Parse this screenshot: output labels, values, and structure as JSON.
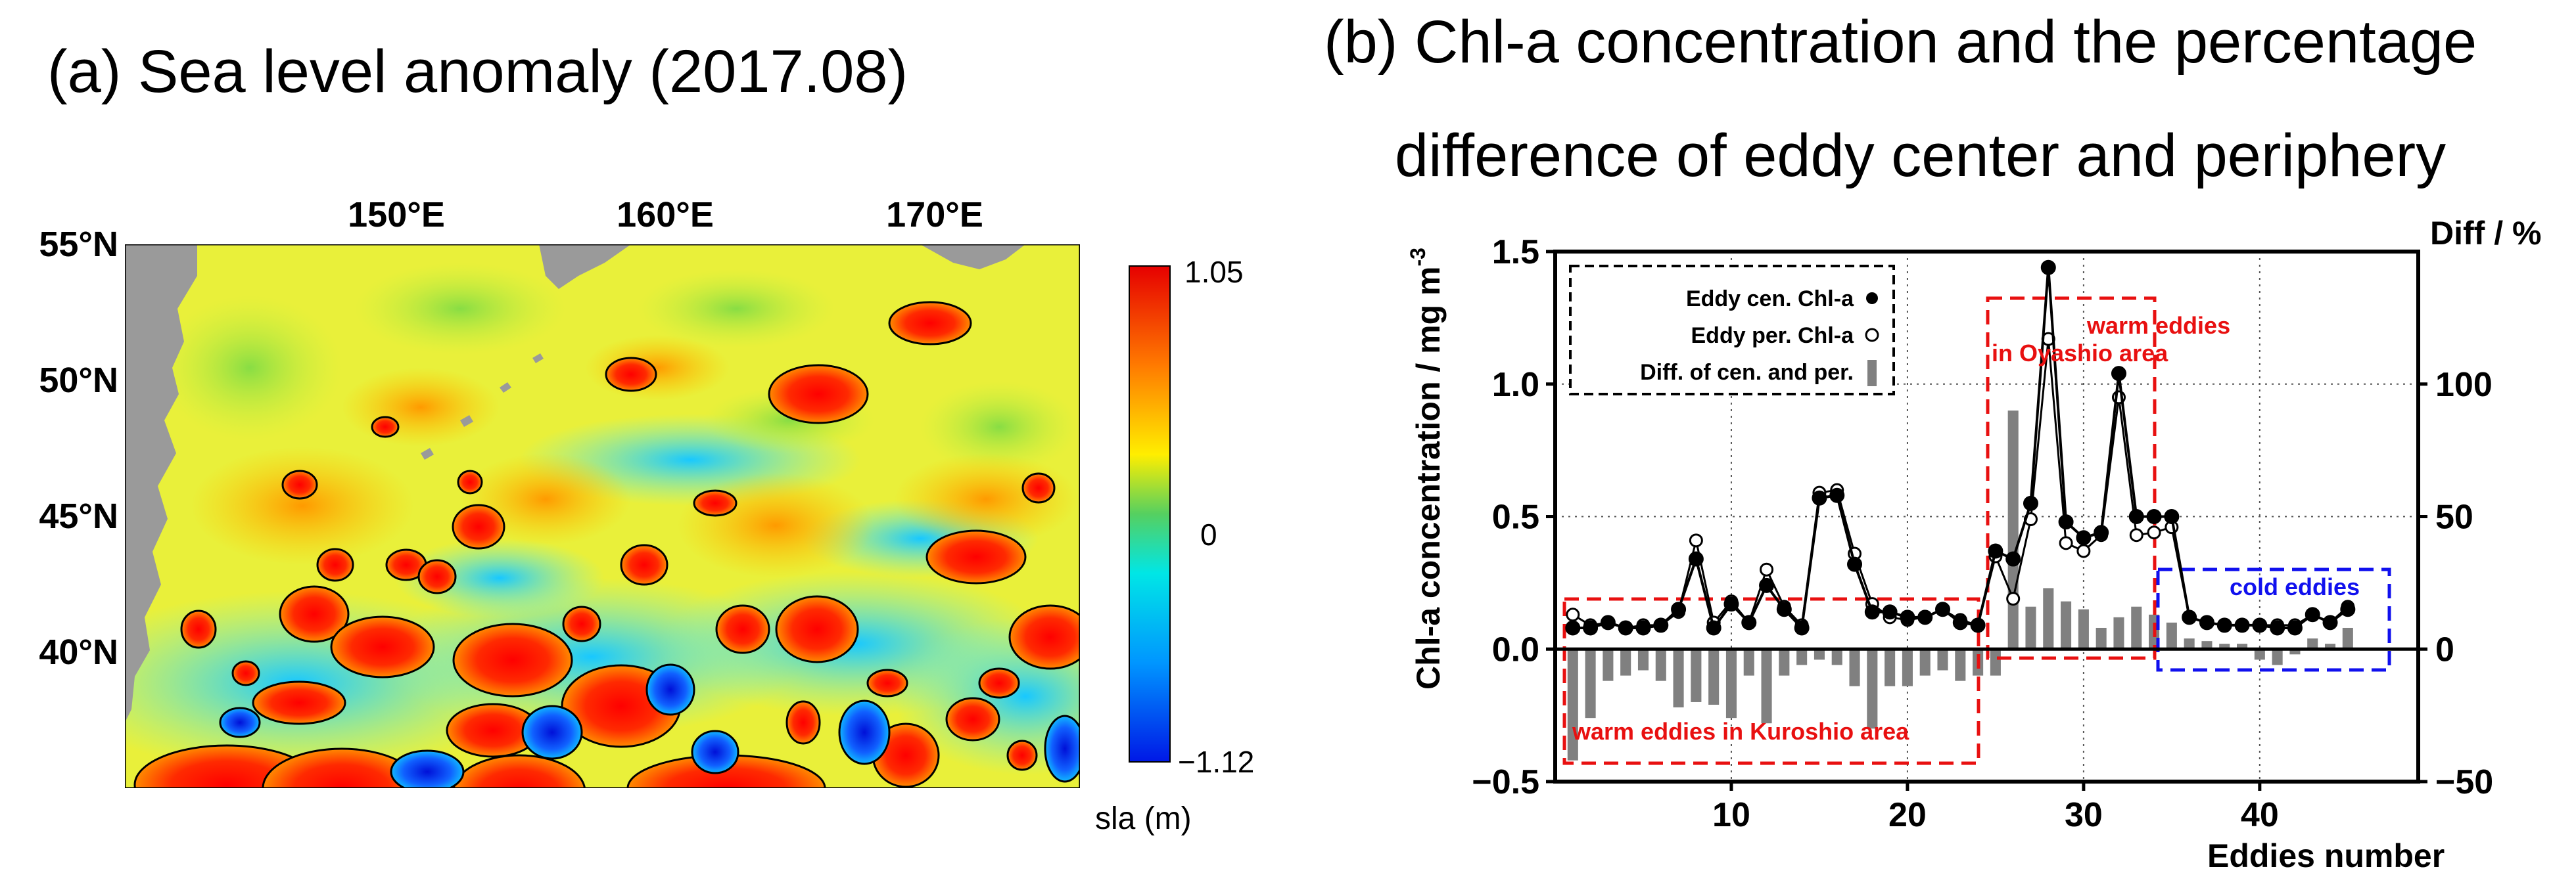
{
  "chart_data": [
    {
      "panel": "a",
      "type": "heatmap",
      "title": "(a) Sea level anomaly (2017.08)",
      "x_ticks": [
        "150°E",
        "160°E",
        "170°E"
      ],
      "y_ticks": [
        "55°N",
        "50°N",
        "45°N",
        "40°N"
      ],
      "colorbar": {
        "label": "sla (m)",
        "max_label": "1.05",
        "mid_label": "0",
        "min_label": "−1.12",
        "range": [
          -1.12,
          1.05
        ]
      },
      "colors": {
        "land": "#9a9a9a",
        "high": "#e60000",
        "low": "#0018e6"
      }
    },
    {
      "panel": "b",
      "type": "line",
      "title_line1": "(b) Chl-a concentration and the percentage",
      "title_line2": "difference of eddy center and periphery",
      "ylabel": "Chl-a concentration / mg m",
      "ylabel_sup": "-3",
      "y2label": "Diff / %",
      "xlabel": "Eddies number",
      "xlim": [
        0,
        49
      ],
      "ylim": [
        -0.5,
        1.5
      ],
      "y2lim": [
        -50,
        150
      ],
      "x_ticks": [
        10,
        20,
        30,
        40
      ],
      "y_ticks": [
        "−0.5",
        "0.0",
        "0.5",
        "1.0",
        "1.5"
      ],
      "y2_ticks": [
        "−50",
        "0",
        "50",
        "100"
      ],
      "legend": [
        "Eddy cen. Chl-a",
        "Eddy per. Chl-a",
        "Diff. of cen. and per."
      ],
      "x": [
        1,
        2,
        3,
        4,
        5,
        6,
        7,
        8,
        9,
        10,
        11,
        12,
        13,
        14,
        15,
        16,
        17,
        18,
        19,
        20,
        21,
        22,
        23,
        24,
        25,
        26,
        27,
        28,
        29,
        30,
        31,
        32,
        33,
        34,
        35,
        36,
        37,
        38,
        39,
        40,
        41,
        42,
        43,
        44,
        45
      ],
      "series": [
        {
          "name": "Eddy cen. Chl-a",
          "values": [
            0.08,
            0.08,
            0.1,
            0.08,
            0.08,
            0.09,
            0.15,
            0.34,
            0.08,
            0.17,
            0.1,
            0.24,
            0.15,
            0.08,
            0.57,
            0.58,
            0.32,
            0.14,
            0.14,
            0.12,
            0.12,
            0.15,
            0.1,
            0.09,
            0.37,
            0.34,
            0.55,
            1.44,
            0.48,
            0.42,
            0.44,
            1.04,
            0.5,
            0.5,
            0.5,
            0.12,
            0.1,
            0.09,
            0.09,
            0.09,
            0.08,
            0.08,
            0.13,
            0.1,
            0.15
          ]
        },
        {
          "name": "Eddy per. Chl-a",
          "values": [
            0.13,
            0.09,
            0.1,
            0.08,
            0.09,
            0.09,
            0.14,
            0.41,
            0.1,
            0.18,
            0.1,
            0.3,
            0.16,
            0.09,
            0.59,
            0.6,
            0.36,
            0.17,
            0.12,
            0.11,
            0.12,
            0.15,
            0.11,
            0.09,
            0.35,
            0.19,
            0.49,
            1.17,
            0.4,
            0.37,
            0.43,
            0.95,
            0.43,
            0.44,
            0.46,
            0.12,
            0.1,
            0.09,
            0.09,
            0.09,
            0.09,
            0.09,
            0.13,
            0.1,
            0.16
          ]
        },
        {
          "name": "Diff. of cen. and per.",
          "values": [
            -42,
            -26,
            -12,
            -10,
            -8,
            -12,
            -22,
            -20,
            -21,
            -26,
            -10,
            -28,
            -10,
            -6,
            -4,
            -6,
            -14,
            -30,
            -14,
            -14,
            -10,
            -8,
            -12,
            -10,
            -10,
            90,
            16,
            23,
            18,
            15,
            8,
            12,
            16,
            13,
            10,
            4,
            3,
            2,
            2,
            -4,
            -6,
            -2,
            4,
            2,
            8
          ]
        }
      ],
      "annotations": {
        "kuroshio": "warm eddies in Kuroshio area",
        "oyashio_line1": "warm eddies",
        "oyashio_line2": "in Oyashio area",
        "cold": "cold eddies"
      },
      "grid": true,
      "legend_position": "top-left"
    }
  ]
}
